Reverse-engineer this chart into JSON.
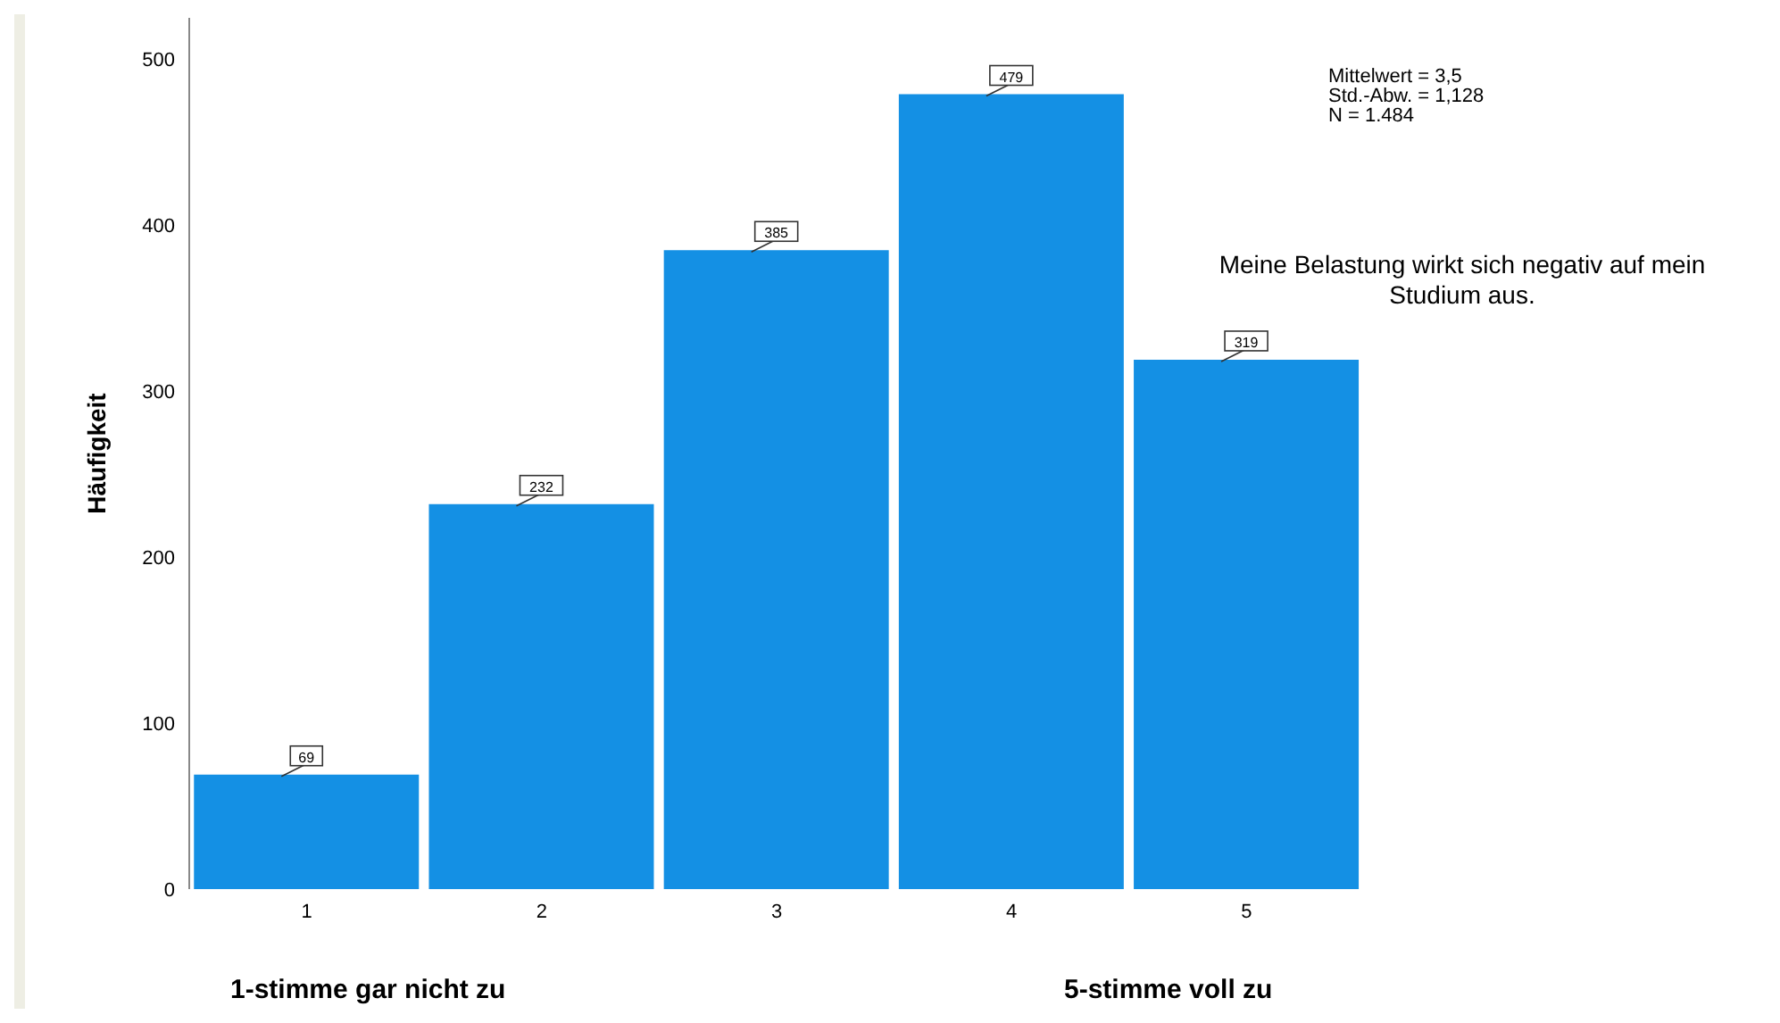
{
  "chart_data": {
    "type": "bar",
    "title": "Meine Belastung wirkt sich negativ auf mein Studium aus.",
    "ylabel": "Häufigkeit",
    "categories": [
      "1",
      "2",
      "3",
      "4",
      "5"
    ],
    "values": [
      69,
      232,
      385,
      479,
      319
    ],
    "color": "#1490e4",
    "data_labels": true,
    "ylim": [
      0,
      525
    ],
    "yticks": [
      0,
      100,
      200,
      300,
      400,
      500
    ],
    "annotations": [
      "Mittelwert = 3,5",
      "Std.-Abw. = 1,128",
      "N = 1.484",
      "1-stimme gar nicht zu",
      "5-stimme voll zu"
    ]
  }
}
